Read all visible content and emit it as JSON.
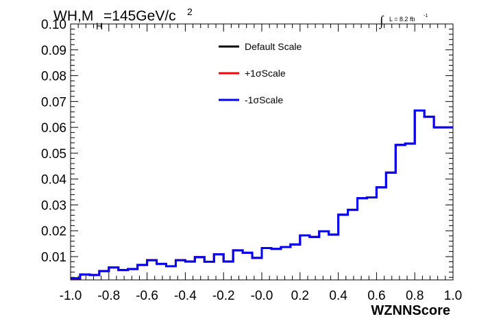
{
  "chart_data": {
    "type": "line",
    "title": {
      "prefix": "WH,M",
      "subscript": "H",
      "main": "=145GeV/c",
      "superscript": "2"
    },
    "lumi": {
      "integral": "∫",
      "text": "L = 8.2 fb",
      "superscript": "-1"
    },
    "xlabel": "WZNNScore",
    "ylabel": "",
    "xlim": [
      -1.0,
      1.0
    ],
    "ylim": [
      0.001,
      0.1
    ],
    "x_ticks": [
      "-1.0",
      "-0.8",
      "-0.6",
      "-0.4",
      "-0.2",
      "-0.0",
      "0.2",
      "0.4",
      "0.6",
      "0.8",
      "1.0"
    ],
    "y_ticks": [
      "0.01",
      "0.02",
      "0.03",
      "0.04",
      "0.05",
      "0.06",
      "0.07",
      "0.08",
      "0.09",
      "0.10"
    ],
    "legend_position": "top-center",
    "bin_edges_start": -1.0,
    "bin_width": 0.05,
    "series": [
      {
        "name": "Default Scale",
        "color": "#000000",
        "values": [
          0.0016,
          0.0031,
          0.0029,
          0.0044,
          0.0058,
          0.0048,
          0.0052,
          0.0068,
          0.0086,
          0.0072,
          0.0063,
          0.0086,
          0.0081,
          0.0098,
          0.008,
          0.0109,
          0.0081,
          0.0124,
          0.0115,
          0.0095,
          0.0133,
          0.013,
          0.0137,
          0.0147,
          0.0182,
          0.0176,
          0.0198,
          0.0185,
          0.0262,
          0.0281,
          0.0326,
          0.0329,
          0.0368,
          0.0425,
          0.0532,
          0.0537,
          0.0665,
          0.0641,
          0.06,
          0.06
        ]
      },
      {
        "name": "+1σScale",
        "color": "#ff0000",
        "values": [
          0.0016,
          0.0031,
          0.0029,
          0.0044,
          0.0058,
          0.0048,
          0.0052,
          0.0068,
          0.0086,
          0.0072,
          0.0063,
          0.0086,
          0.0081,
          0.0098,
          0.008,
          0.0109,
          0.0081,
          0.0124,
          0.0115,
          0.0095,
          0.0133,
          0.013,
          0.0137,
          0.0147,
          0.0182,
          0.0176,
          0.0198,
          0.0185,
          0.0262,
          0.0281,
          0.0326,
          0.0329,
          0.0368,
          0.0425,
          0.0532,
          0.0537,
          0.0665,
          0.0641,
          0.06,
          0.06
        ]
      },
      {
        "name": "-1σScale",
        "color": "#0000ff",
        "values": [
          0.0016,
          0.0031,
          0.0029,
          0.0044,
          0.0058,
          0.0048,
          0.0052,
          0.0068,
          0.0086,
          0.0072,
          0.0063,
          0.0086,
          0.0081,
          0.0098,
          0.008,
          0.0109,
          0.0081,
          0.0124,
          0.0115,
          0.0095,
          0.0133,
          0.013,
          0.0137,
          0.0147,
          0.0182,
          0.0176,
          0.0198,
          0.0185,
          0.0262,
          0.0281,
          0.0326,
          0.0329,
          0.0368,
          0.0425,
          0.0532,
          0.0537,
          0.0665,
          0.0641,
          0.06,
          0.06
        ]
      }
    ]
  }
}
